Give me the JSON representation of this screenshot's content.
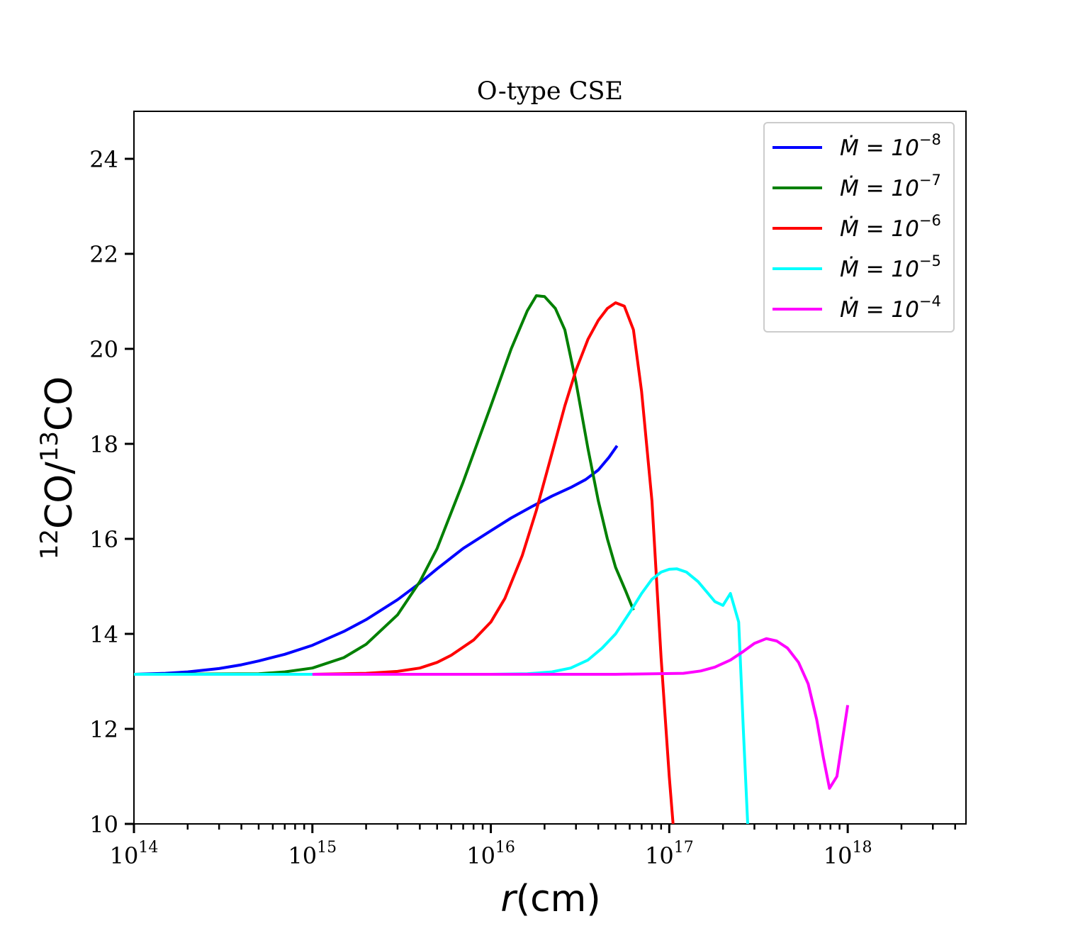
{
  "chart_data": {
    "type": "line",
    "title": "O-type CSE",
    "xlabel": "r(cm)",
    "xlabel_var": "r",
    "xlabel_unit": "(cm)",
    "ylabel": "12CO/13CO",
    "ylabel_parts": {
      "sup1": "12",
      "base1": "CO/",
      "sup2": "13",
      "base2": "CO"
    },
    "xscale": "log",
    "xlim": [
      100000000000000.0,
      4.6e+18
    ],
    "ylim": [
      10,
      25
    ],
    "x_ticks": [
      {
        "label": "10",
        "exp": "14",
        "value": 100000000000000.0
      },
      {
        "label": "10",
        "exp": "15",
        "value": 1000000000000000.0
      },
      {
        "label": "10",
        "exp": "16",
        "value": 1e+16
      },
      {
        "label": "10",
        "exp": "17",
        "value": 1e+17
      },
      {
        "label": "10",
        "exp": "18",
        "value": 1e+18
      }
    ],
    "y_ticks": [
      "10",
      "12",
      "14",
      "16",
      "18",
      "20",
      "22",
      "24"
    ],
    "legend_position": "top-right",
    "series": [
      {
        "name": "Ṁ = 10^-8",
        "legend_base": "Ṁ = 10",
        "legend_exp": "−8",
        "color": "#0000ff",
        "points": [
          [
            100000000000000.0,
            13.15
          ],
          [
            150000000000000.0,
            13.17
          ],
          [
            200000000000000.0,
            13.2
          ],
          [
            300000000000000.0,
            13.27
          ],
          [
            400000000000000.0,
            13.35
          ],
          [
            500000000000000.0,
            13.43
          ],
          [
            700000000000000.0,
            13.57
          ],
          [
            1000000000000000.0,
            13.76
          ],
          [
            1500000000000000.0,
            14.05
          ],
          [
            2000000000000000.0,
            14.3
          ],
          [
            3000000000000000.0,
            14.72
          ],
          [
            4000000000000000.0,
            15.07
          ],
          [
            5000000000000000.0,
            15.37
          ],
          [
            7000000000000000.0,
            15.8
          ],
          [
            1e+16,
            16.17
          ],
          [
            1.3e+16,
            16.44
          ],
          [
            1.7e+16,
            16.68
          ],
          [
            2.2e+16,
            16.9
          ],
          [
            2.8e+16,
            17.08
          ],
          [
            3.4e+16,
            17.25
          ],
          [
            4e+16,
            17.45
          ],
          [
            4.6e+16,
            17.72
          ],
          [
            5.1e+16,
            17.96
          ]
        ]
      },
      {
        "name": "Ṁ = 10^-7",
        "legend_base": "Ṁ = 10",
        "legend_exp": "−7",
        "color": "#008000",
        "points": [
          [
            100000000000000.0,
            13.15
          ],
          [
            500000000000000.0,
            13.16
          ],
          [
            700000000000000.0,
            13.2
          ],
          [
            1000000000000000.0,
            13.28
          ],
          [
            1500000000000000.0,
            13.5
          ],
          [
            2000000000000000.0,
            13.78
          ],
          [
            3000000000000000.0,
            14.4
          ],
          [
            4000000000000000.0,
            15.1
          ],
          [
            5000000000000000.0,
            15.8
          ],
          [
            7000000000000000.0,
            17.2
          ],
          [
            1e+16,
            18.8
          ],
          [
            1.3e+16,
            20.0
          ],
          [
            1.6e+16,
            20.8
          ],
          [
            1.8e+16,
            21.12
          ],
          [
            2e+16,
            21.1
          ],
          [
            2.3e+16,
            20.85
          ],
          [
            2.6e+16,
            20.4
          ],
          [
            3e+16,
            19.3
          ],
          [
            3.5e+16,
            17.9
          ],
          [
            4e+16,
            16.8
          ],
          [
            4.5e+16,
            16.0
          ],
          [
            5e+16,
            15.4
          ],
          [
            5.7e+16,
            14.9
          ],
          [
            6.3e+16,
            14.5
          ]
        ]
      },
      {
        "name": "Ṁ = 10^-6",
        "legend_base": "Ṁ = 10",
        "legend_exp": "−6",
        "color": "#ff0000",
        "points": [
          [
            1000000000000000.0,
            13.15
          ],
          [
            2000000000000000.0,
            13.17
          ],
          [
            3000000000000000.0,
            13.21
          ],
          [
            4000000000000000.0,
            13.28
          ],
          [
            5000000000000000.0,
            13.4
          ],
          [
            6000000000000000.0,
            13.55
          ],
          [
            8000000000000000.0,
            13.87
          ],
          [
            1e+16,
            14.25
          ],
          [
            1.2e+16,
            14.75
          ],
          [
            1.5e+16,
            15.65
          ],
          [
            1.8e+16,
            16.6
          ],
          [
            2.2e+16,
            17.8
          ],
          [
            2.6e+16,
            18.8
          ],
          [
            3e+16,
            19.55
          ],
          [
            3.5e+16,
            20.2
          ],
          [
            4e+16,
            20.6
          ],
          [
            4.5e+16,
            20.85
          ],
          [
            5e+16,
            20.97
          ],
          [
            5.6e+16,
            20.9
          ],
          [
            6.3e+16,
            20.4
          ],
          [
            7e+16,
            19.1
          ],
          [
            8e+16,
            16.8
          ],
          [
            9e+16,
            13.5
          ],
          [
            1e+17,
            11.0
          ],
          [
            1.05e+17,
            10.0
          ]
        ]
      },
      {
        "name": "Ṁ = 10^-5",
        "legend_base": "Ṁ = 10",
        "legend_exp": "−5",
        "color": "#00ffff",
        "points": [
          [
            100000000000000.0,
            13.15
          ],
          [
            1e+16,
            13.15
          ],
          [
            1.6e+16,
            13.16
          ],
          [
            2.2e+16,
            13.2
          ],
          [
            2.8e+16,
            13.28
          ],
          [
            3.5e+16,
            13.45
          ],
          [
            4.2e+16,
            13.7
          ],
          [
            5e+16,
            14.0
          ],
          [
            6e+16,
            14.45
          ],
          [
            7e+16,
            14.85
          ],
          [
            8e+16,
            15.15
          ],
          [
            9e+16,
            15.3
          ],
          [
            1e+17,
            15.36
          ],
          [
            1.1e+17,
            15.37
          ],
          [
            1.25e+17,
            15.3
          ],
          [
            1.45e+17,
            15.1
          ],
          [
            1.65e+17,
            14.85
          ],
          [
            1.8e+17,
            14.68
          ],
          [
            2e+17,
            14.6
          ],
          [
            2.2e+17,
            14.85
          ],
          [
            2.45e+17,
            14.25
          ],
          [
            2.6e+17,
            12.0
          ],
          [
            2.75e+17,
            10.0
          ]
        ]
      },
      {
        "name": "Ṁ = 10^-4",
        "legend_base": "Ṁ = 10",
        "legend_exp": "−4",
        "color": "#ff00ff",
        "points": [
          [
            1000000000000000.0,
            13.15
          ],
          [
            5e+16,
            13.15
          ],
          [
            1.2e+17,
            13.17
          ],
          [
            1.5e+17,
            13.22
          ],
          [
            1.8e+17,
            13.3
          ],
          [
            2.2e+17,
            13.45
          ],
          [
            2.6e+17,
            13.63
          ],
          [
            3e+17,
            13.8
          ],
          [
            3.5e+17,
            13.9
          ],
          [
            4e+17,
            13.85
          ],
          [
            4.6e+17,
            13.7
          ],
          [
            5.3e+17,
            13.4
          ],
          [
            6e+17,
            12.95
          ],
          [
            6.7e+17,
            12.2
          ],
          [
            7.3e+17,
            11.4
          ],
          [
            7.9e+17,
            10.75
          ],
          [
            8.7e+17,
            11.0
          ],
          [
            1e+18,
            12.5
          ]
        ]
      }
    ]
  }
}
